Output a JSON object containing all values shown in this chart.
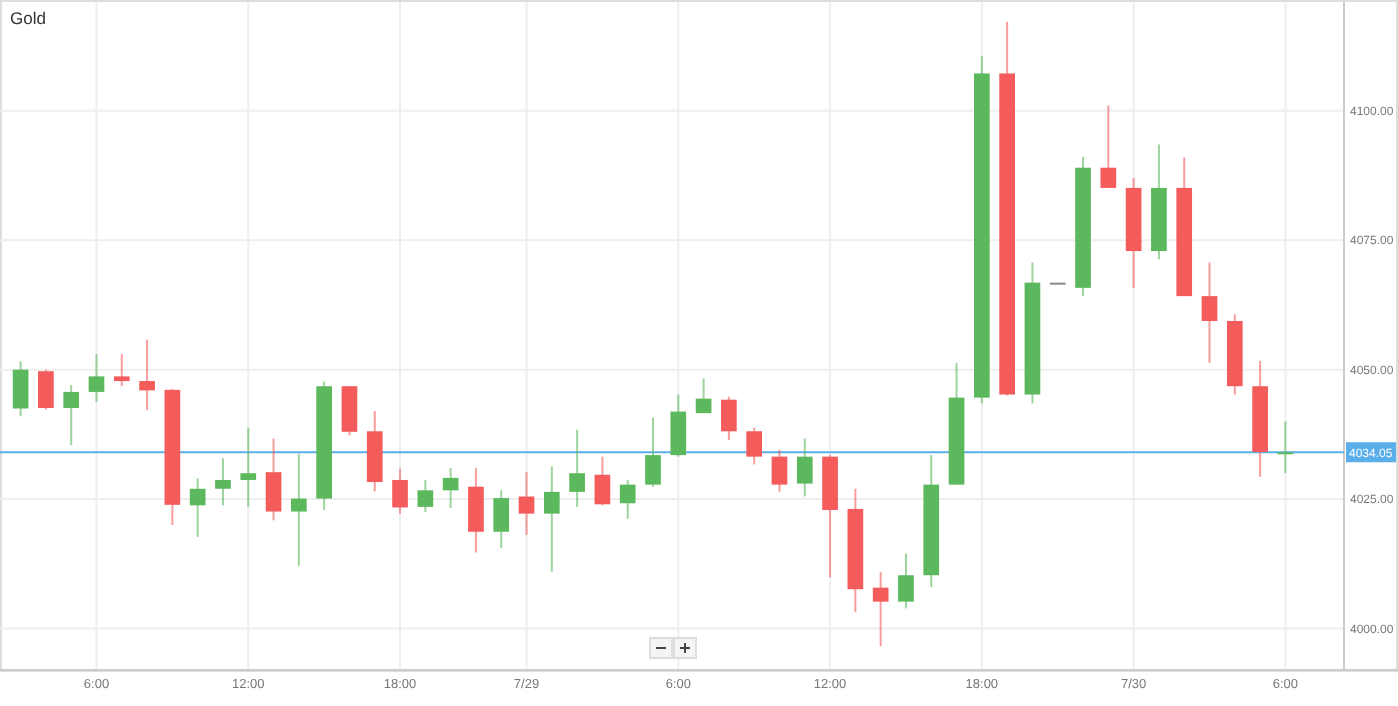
{
  "chart_data": {
    "type": "candlestick",
    "title": "Gold",
    "categories": [
      null,
      null,
      null,
      "6:00",
      null,
      null,
      null,
      null,
      null,
      "12:00",
      null,
      null,
      null,
      null,
      null,
      "18:00",
      null,
      null,
      null,
      null,
      "7/29",
      null,
      null,
      null,
      null,
      null,
      "6:00",
      null,
      null,
      null,
      null,
      null,
      "12:00",
      null,
      null,
      null,
      null,
      null,
      "18:00",
      null,
      null,
      null,
      null,
      null,
      "7/30",
      null,
      null,
      null,
      null,
      null,
      "6:00"
    ],
    "ohlc": [
      [
        4042.5,
        4051.6,
        4041.0,
        4050.0
      ],
      [
        4049.7,
        4050.0,
        4042.3,
        4042.6
      ],
      [
        4042.6,
        4047.0,
        4035.4,
        4045.7
      ],
      [
        4045.7,
        4053.0,
        4043.8,
        4048.7
      ],
      [
        4048.7,
        4053.0,
        4046.8,
        4047.8
      ],
      [
        4047.8,
        4055.8,
        4042.2,
        4046.0
      ],
      [
        4046.1,
        4046.3,
        4020.0,
        4023.9
      ],
      [
        4023.8,
        4029.0,
        4017.7,
        4027.0
      ],
      [
        4027.0,
        4032.9,
        4023.8,
        4028.7
      ],
      [
        4028.7,
        4038.8,
        4023.5,
        4030.0
      ],
      [
        4030.2,
        4036.7,
        4020.9,
        4022.6
      ],
      [
        4022.6,
        4033.8,
        4012.1,
        4025.1
      ],
      [
        4025.1,
        4047.7,
        4022.9,
        4046.8
      ],
      [
        4046.8,
        4046.8,
        4037.3,
        4038.0
      ],
      [
        4038.1,
        4042.0,
        4026.5,
        4028.3
      ],
      [
        4028.7,
        4030.9,
        4022.2,
        4023.4
      ],
      [
        4023.5,
        4028.7,
        4022.5,
        4026.7
      ],
      [
        4026.7,
        4031.0,
        4023.3,
        4029.1
      ],
      [
        4027.4,
        4031.0,
        4014.7,
        4018.7
      ],
      [
        4018.7,
        4026.7,
        4015.5,
        4025.2
      ],
      [
        4025.5,
        4030.2,
        4018.1,
        4022.2
      ],
      [
        4022.2,
        4031.3,
        4011.0,
        4026.4
      ],
      [
        4026.4,
        4038.4,
        4023.5,
        4030.0
      ],
      [
        4029.7,
        4033.2,
        4023.8,
        4024.0
      ],
      [
        4024.2,
        4028.7,
        4021.2,
        4027.8
      ],
      [
        4027.8,
        4040.7,
        4027.4,
        4033.5
      ],
      [
        4033.5,
        4045.2,
        4033.2,
        4041.9
      ],
      [
        4041.6,
        4048.3,
        4041.6,
        4044.4
      ],
      [
        4044.2,
        4044.8,
        4036.4,
        4038.1
      ],
      [
        4038.1,
        4038.8,
        4031.7,
        4033.2
      ],
      [
        4033.2,
        4034.5,
        4026.4,
        4027.8
      ],
      [
        4028.0,
        4036.7,
        4025.5,
        4033.2
      ],
      [
        4033.2,
        4033.5,
        4009.9,
        4022.9
      ],
      [
        4023.1,
        4027.0,
        4003.2,
        4007.6
      ],
      [
        4007.9,
        4010.9,
        3996.6,
        4005.2
      ],
      [
        4005.2,
        4014.5,
        4003.9,
        4010.3
      ],
      [
        4010.3,
        4033.5,
        4008.0,
        4027.8
      ],
      [
        4027.8,
        4051.3,
        4027.8,
        4044.6
      ],
      [
        4044.6,
        4110.5,
        4043.5,
        4107.2
      ],
      [
        4107.2,
        4117.2,
        4045.0,
        4045.2
      ],
      [
        4045.2,
        4070.7,
        4043.5,
        4066.8
      ],
      [
        4066.8,
        4066.8,
        4066.8,
        4066.8
      ],
      [
        4065.8,
        4091.1,
        4064.2,
        4089.0
      ],
      [
        4089.0,
        4101.0,
        4085.1,
        4085.1
      ],
      [
        4085.1,
        4087.0,
        4065.8,
        4072.9
      ],
      [
        4072.9,
        4093.5,
        4071.3,
        4085.1
      ],
      [
        4085.1,
        4091.0,
        4064.2,
        4064.2
      ],
      [
        4064.2,
        4070.7,
        4051.3,
        4059.4
      ],
      [
        4059.4,
        4060.7,
        4045.2,
        4046.8
      ],
      [
        4046.8,
        4051.7,
        4029.3,
        4034.1
      ],
      [
        4033.8,
        4040.0,
        4030.0,
        4034.05
      ]
    ],
    "colors": [
      "#5cb85c",
      "#f45b5b",
      "#5cb85c",
      "#5cb85c",
      "#f45b5b",
      "#f45b5b",
      "#f45b5b",
      "#5cb85c",
      "#5cb85c",
      "#5cb85c",
      "#f45b5b",
      "#5cb85c",
      "#5cb85c",
      "#f45b5b",
      "#f45b5b",
      "#f45b5b",
      "#5cb85c",
      "#5cb85c",
      "#f45b5b",
      "#5cb85c",
      "#f45b5b",
      "#5cb85c",
      "#5cb85c",
      "#f45b5b",
      "#5cb85c",
      "#5cb85c",
      "#5cb85c",
      "#5cb85c",
      "#f45b5b",
      "#f45b5b",
      "#f45b5b",
      "#5cb85c",
      "#f45b5b",
      "#f45b5b",
      "#f45b5b",
      "#5cb85c",
      "#5cb85c",
      "#5cb85c",
      "#5cb85c",
      "#f45b5b",
      "#5cb85c",
      "#888888",
      "#5cb85c",
      "#f45b5b",
      "#f45b5b",
      "#5cb85c",
      "#f45b5b",
      "#f45b5b",
      "#f45b5b",
      "#f45b5b",
      "#5cb85c"
    ],
    "ylim": [
      3992,
      4121
    ],
    "yticks": [
      {
        "value": 4000,
        "label": "4000.00"
      },
      {
        "value": 4025,
        "label": "4025.00"
      },
      {
        "value": 4050,
        "label": "4050.00"
      },
      {
        "value": 4075,
        "label": "4075.00"
      },
      {
        "value": 4100,
        "label": "4100.00"
      }
    ],
    "grid": true,
    "ref_lines": [
      {
        "axis": "y",
        "value": 4034.05,
        "label": "4034.05",
        "color": "#5aaeea"
      }
    ]
  }
}
